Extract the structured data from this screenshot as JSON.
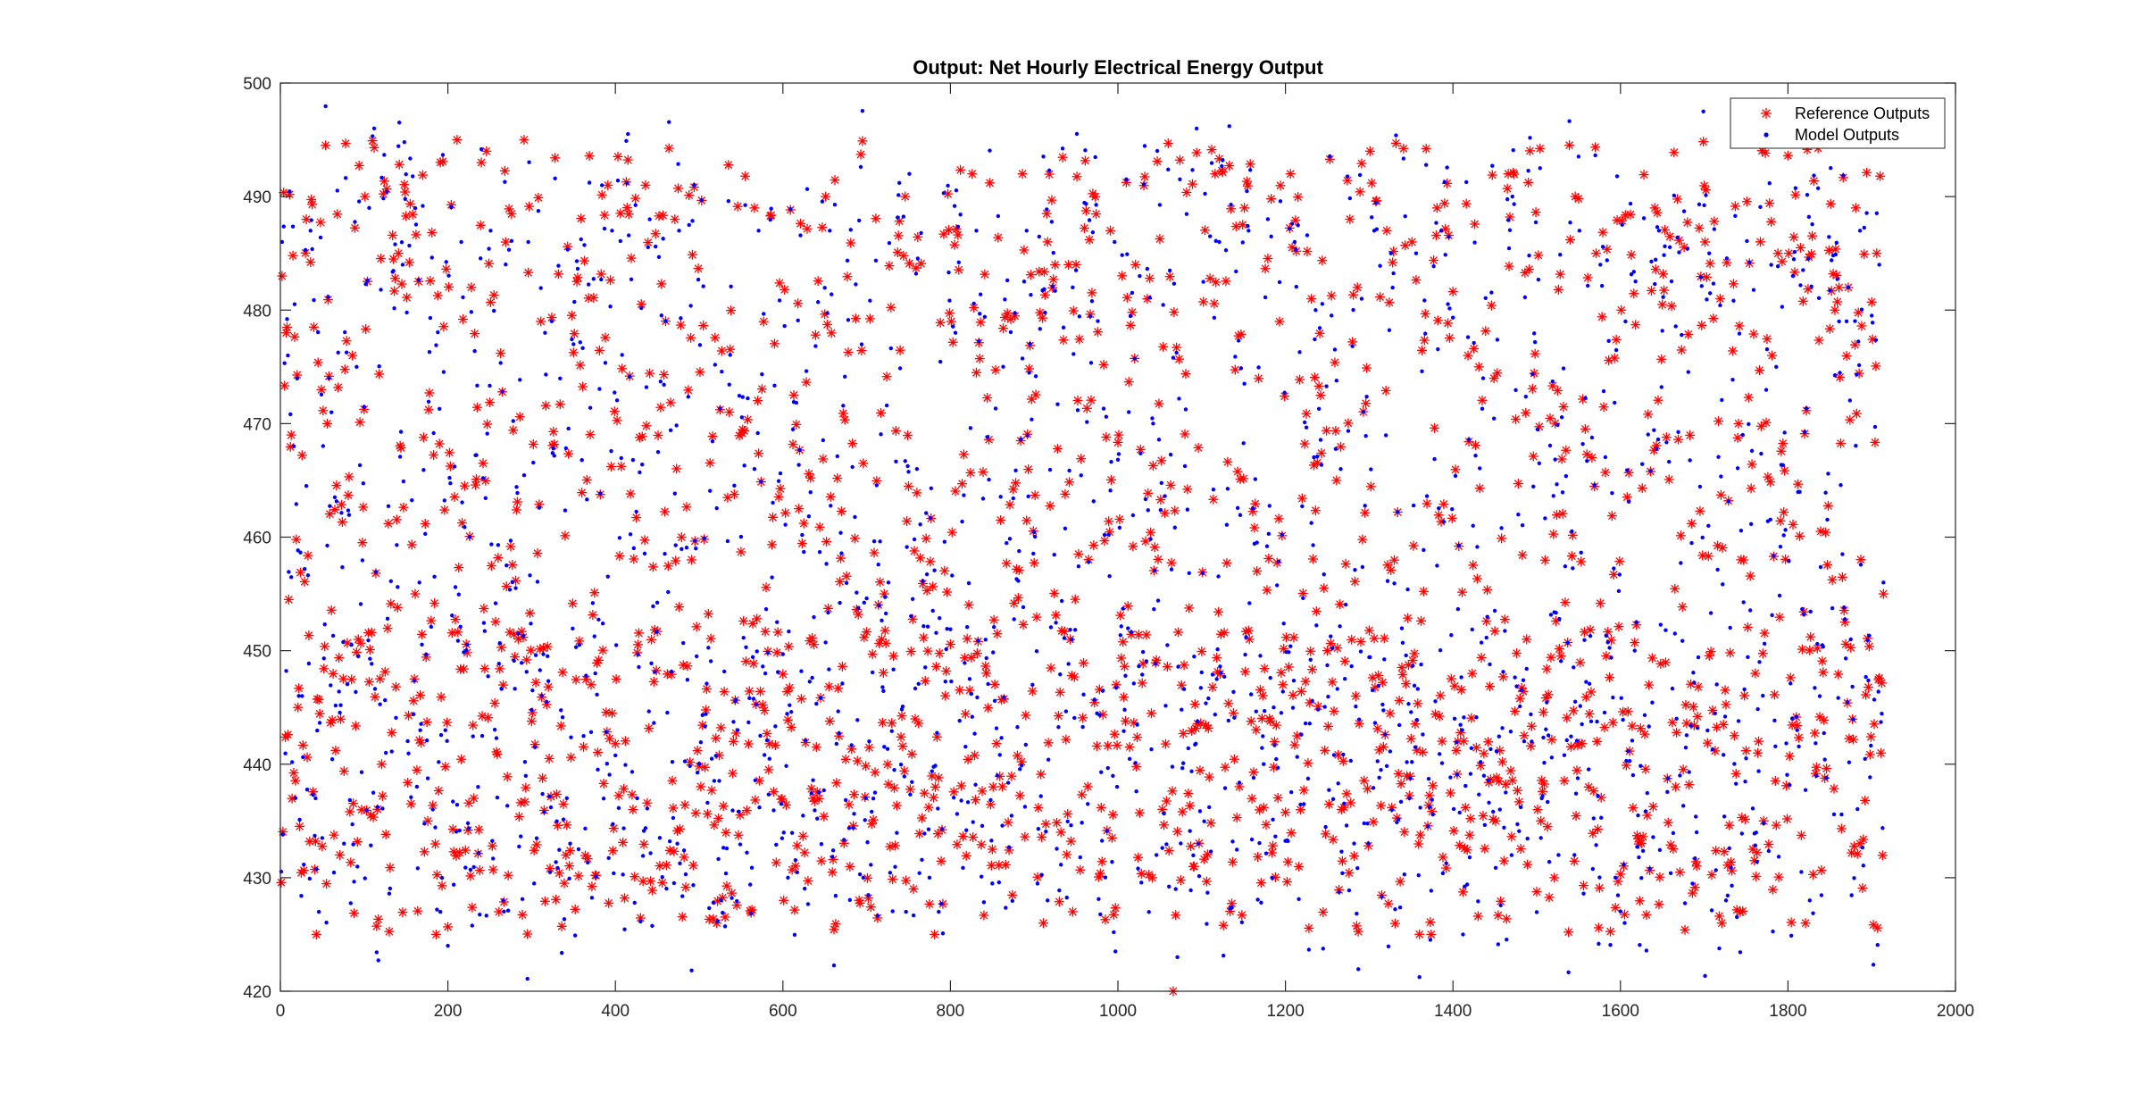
{
  "chart_data": {
    "type": "scatter",
    "title": "Output: Net Hourly Electrical Energy Output",
    "xlabel": "",
    "ylabel": "",
    "xlim": [
      0,
      2000
    ],
    "ylim": [
      420,
      500
    ],
    "x_ticks": [
      0,
      200,
      400,
      600,
      800,
      1000,
      1200,
      1400,
      1600,
      1800,
      2000
    ],
    "y_ticks": [
      420,
      430,
      440,
      450,
      460,
      470,
      480,
      490,
      500
    ],
    "grid": false,
    "legend_position": "top-right",
    "n_points": 1914,
    "data_reading_note": "Approximately 1914 samples, y values spread roughly uniformly between about 425 and 495 with no trend; model outputs track the reference outputs closely.",
    "series": [
      {
        "name": "Reference Outputs",
        "marker": "asterisk",
        "color": "#ff0000",
        "sample_points": [
          [
            1,
            483
          ],
          [
            6,
            478
          ],
          [
            12,
            469
          ],
          [
            20,
            445
          ],
          [
            30,
            488
          ],
          [
            42,
            425
          ],
          [
            55,
            470
          ],
          [
            70,
            432
          ],
          [
            85,
            476
          ],
          [
            100,
            490
          ],
          [
            120,
            440
          ],
          [
            140,
            485
          ],
          [
            160,
            455
          ],
          [
            185,
            425
          ],
          [
            210,
            495
          ],
          [
            230,
            437
          ],
          [
            245,
            494
          ],
          [
            260,
            427
          ],
          [
            290,
            495
          ],
          [
            310,
            479
          ],
          [
            340,
            432
          ],
          [
            370,
            447
          ],
          [
            390,
            491
          ],
          [
            420,
            436
          ],
          [
            435,
            491
          ],
          [
            470,
            488
          ],
          [
            490,
            458
          ],
          [
            520,
            426
          ],
          [
            540,
            442
          ],
          [
            565,
            489
          ],
          [
            600,
            428
          ],
          [
            650,
            490
          ],
          [
            690,
            428
          ],
          [
            720,
            455
          ],
          [
            745,
            490
          ],
          [
            780,
            425
          ],
          [
            800,
            479
          ],
          [
            825,
            492
          ],
          [
            850,
            438
          ],
          [
            885,
            492
          ],
          [
            910,
            426
          ],
          [
            940,
            484
          ],
          [
            990,
            487
          ],
          [
            1020,
            484
          ],
          [
            1040,
            430
          ],
          [
            1065,
            420
          ],
          [
            1090,
            431
          ],
          [
            1115,
            492
          ],
          [
            1150,
            489
          ],
          [
            1180,
            444
          ],
          [
            1205,
            492
          ],
          [
            1230,
            481
          ],
          [
            1260,
            465
          ],
          [
            1285,
            482
          ],
          [
            1300,
            494
          ],
          [
            1320,
            487
          ],
          [
            1350,
            486
          ],
          [
            1380,
            489
          ],
          [
            1405,
            442
          ],
          [
            1430,
            475
          ],
          [
            1450,
            435
          ],
          [
            1465,
            492
          ],
          [
            1500,
            436
          ],
          [
            1520,
            430
          ],
          [
            1545,
            490
          ],
          [
            1570,
            485
          ],
          [
            1600,
            480
          ],
          [
            1640,
            489
          ],
          [
            1665,
            438
          ],
          [
            1700,
            486
          ],
          [
            1720,
            426
          ],
          [
            1740,
            470
          ],
          [
            1760,
            448
          ],
          [
            1780,
            476
          ],
          [
            1800,
            485
          ],
          [
            1820,
            426
          ],
          [
            1855,
            480
          ],
          [
            1880,
            489
          ],
          [
            1905,
            485
          ],
          [
            1914,
            455
          ]
        ]
      },
      {
        "name": "Model Outputs",
        "marker": "dot",
        "color": "#0000ff",
        "sample_points": [
          [
            1,
            486
          ],
          [
            8,
            476
          ],
          [
            15,
            468
          ],
          [
            25,
            446
          ],
          [
            35,
            487
          ],
          [
            45,
            427
          ],
          [
            60,
            471
          ],
          [
            75,
            433
          ],
          [
            90,
            475
          ],
          [
            105,
            489
          ],
          [
            125,
            441
          ],
          [
            145,
            484
          ],
          [
            165,
            456
          ],
          [
            190,
            427
          ],
          [
            215,
            486
          ],
          [
            235,
            438
          ],
          [
            250,
            487
          ],
          [
            265,
            428
          ],
          [
            295,
            486
          ],
          [
            315,
            478
          ],
          [
            345,
            433
          ],
          [
            375,
            448
          ],
          [
            395,
            487
          ],
          [
            425,
            437
          ],
          [
            440,
            488
          ],
          [
            475,
            487
          ],
          [
            495,
            459
          ],
          [
            525,
            428
          ],
          [
            545,
            443
          ],
          [
            570,
            487
          ],
          [
            605,
            430
          ],
          [
            655,
            487
          ],
          [
            695,
            430
          ],
          [
            725,
            456
          ],
          [
            750,
            492
          ],
          [
            785,
            427
          ],
          [
            805,
            478
          ],
          [
            830,
            487
          ],
          [
            855,
            439
          ],
          [
            890,
            487
          ],
          [
            915,
            428
          ],
          [
            945,
            482
          ],
          [
            995,
            486
          ],
          [
            1025,
            483
          ],
          [
            1045,
            432
          ],
          [
            1070,
            423
          ],
          [
            1095,
            433
          ],
          [
            1120,
            486
          ],
          [
            1155,
            487
          ],
          [
            1185,
            445
          ],
          [
            1210,
            486
          ],
          [
            1235,
            480
          ],
          [
            1265,
            466
          ],
          [
            1290,
            481
          ],
          [
            1305,
            487
          ],
          [
            1325,
            485
          ],
          [
            1355,
            485
          ],
          [
            1385,
            487
          ],
          [
            1410,
            443
          ],
          [
            1435,
            474
          ],
          [
            1455,
            436
          ],
          [
            1470,
            490
          ],
          [
            1505,
            437
          ],
          [
            1525,
            432
          ],
          [
            1550,
            487
          ],
          [
            1575,
            484
          ],
          [
            1605,
            479
          ],
          [
            1645,
            487
          ],
          [
            1670,
            439
          ],
          [
            1705,
            485
          ],
          [
            1725,
            428
          ],
          [
            1745,
            469
          ],
          [
            1765,
            449
          ],
          [
            1785,
            475
          ],
          [
            1805,
            483
          ],
          [
            1825,
            428
          ],
          [
            1860,
            479
          ],
          [
            1885,
            487
          ],
          [
            1908,
            484
          ],
          [
            1914,
            456
          ]
        ]
      }
    ]
  }
}
